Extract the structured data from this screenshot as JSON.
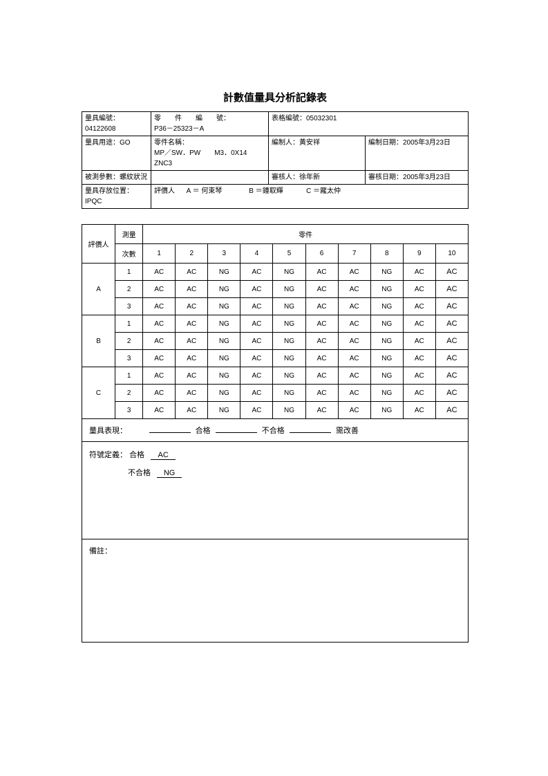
{
  "title": "計數值量具分析記錄表",
  "info": {
    "gauge_no_label": "量具編號：",
    "gauge_no": "04122608",
    "part_no_label": "零　　件　　編　　號：",
    "part_no": "P36－25323－A",
    "form_no_label": "表格編號：",
    "form_no": "05032301",
    "gauge_use_label": "量具用途：",
    "gauge_use": "GO",
    "part_name_label": "零件名稱：",
    "part_name_line1": "MP／SW．PW　　M3．0X14",
    "part_name_line2": "ZNC3",
    "prepared_by_label": "編制人：",
    "prepared_by": "黃安祥",
    "prepared_date_label": "編制日期：",
    "prepared_date": "2005年3月23日",
    "measured_param_label": "被測參數：",
    "measured_param": "螺紋狀況",
    "reviewed_by_label": "審核人：",
    "reviewed_by": "徐年新",
    "reviewed_date_label": "審核日期：",
    "reviewed_date": "2005年3月23日",
    "storage_label": "量具存放位置：",
    "storage": "IPQC",
    "evaluator_label": "評價人",
    "evaluator_a": "A ＝ 何束琴",
    "evaluator_b": "B ＝鍾取輝",
    "evaluator_c": "C ＝龎太仲"
  },
  "table": {
    "header_evaluator": "評價人",
    "header_measure": "測量次數",
    "header_parts": "零件",
    "part_numbers": [
      "1",
      "2",
      "3",
      "4",
      "5",
      "6",
      "7",
      "8",
      "9",
      "10"
    ],
    "groups": [
      {
        "label": "A",
        "trials": [
          "1",
          "2",
          "3"
        ]
      },
      {
        "label": "B",
        "trials": [
          "1",
          "2",
          "3"
        ]
      },
      {
        "label": "C",
        "trials": [
          "1",
          "2",
          "3"
        ]
      }
    ],
    "row_pattern": [
      "AC",
      "AC",
      "NG",
      "AC",
      "NG",
      "AC",
      "AC",
      "NG",
      "AC",
      "AC"
    ]
  },
  "footer": {
    "perf_label": "量具表現：",
    "pass": "合格",
    "fail": "不合格",
    "improve": "需改善",
    "symbol_label": "符號定義：",
    "symbol_pass_label": "合格",
    "symbol_pass_val": "AC",
    "symbol_fail_label": "不合格",
    "symbol_fail_val": "NG",
    "remark_label": "備註："
  }
}
